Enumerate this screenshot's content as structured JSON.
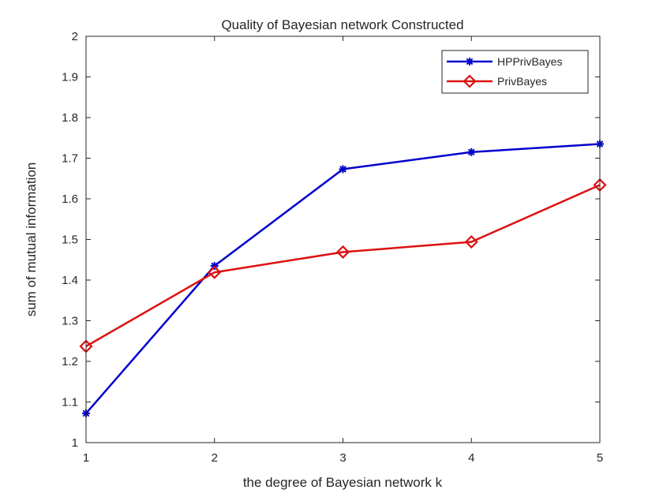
{
  "chart_data": {
    "type": "line",
    "title": "Quality of Bayesian network Constructed",
    "xlabel": "the degree of Bayesian network k",
    "ylabel": "sum of mutual information",
    "x": [
      1,
      2,
      3,
      4,
      5
    ],
    "xlim": [
      1,
      5
    ],
    "ylim": [
      1,
      2
    ],
    "xticks": [
      "1",
      "2",
      "3",
      "4",
      "5"
    ],
    "yticks": [
      "1",
      "1.1",
      "1.2",
      "1.3",
      "1.4",
      "1.5",
      "1.6",
      "1.7",
      "1.8",
      "1.9",
      "2"
    ],
    "grid": false,
    "legend_position": "top-right",
    "series": [
      {
        "name": "HPPrivBayes",
        "color": "#0000cc",
        "marker": "asterisk",
        "values": [
          1.072,
          1.435,
          1.673,
          1.715,
          1.735
        ]
      },
      {
        "name": "PrivBayes",
        "color": "#dd1111",
        "marker": "diamond",
        "values": [
          1.237,
          1.419,
          1.469,
          1.494,
          1.634
        ]
      }
    ]
  }
}
